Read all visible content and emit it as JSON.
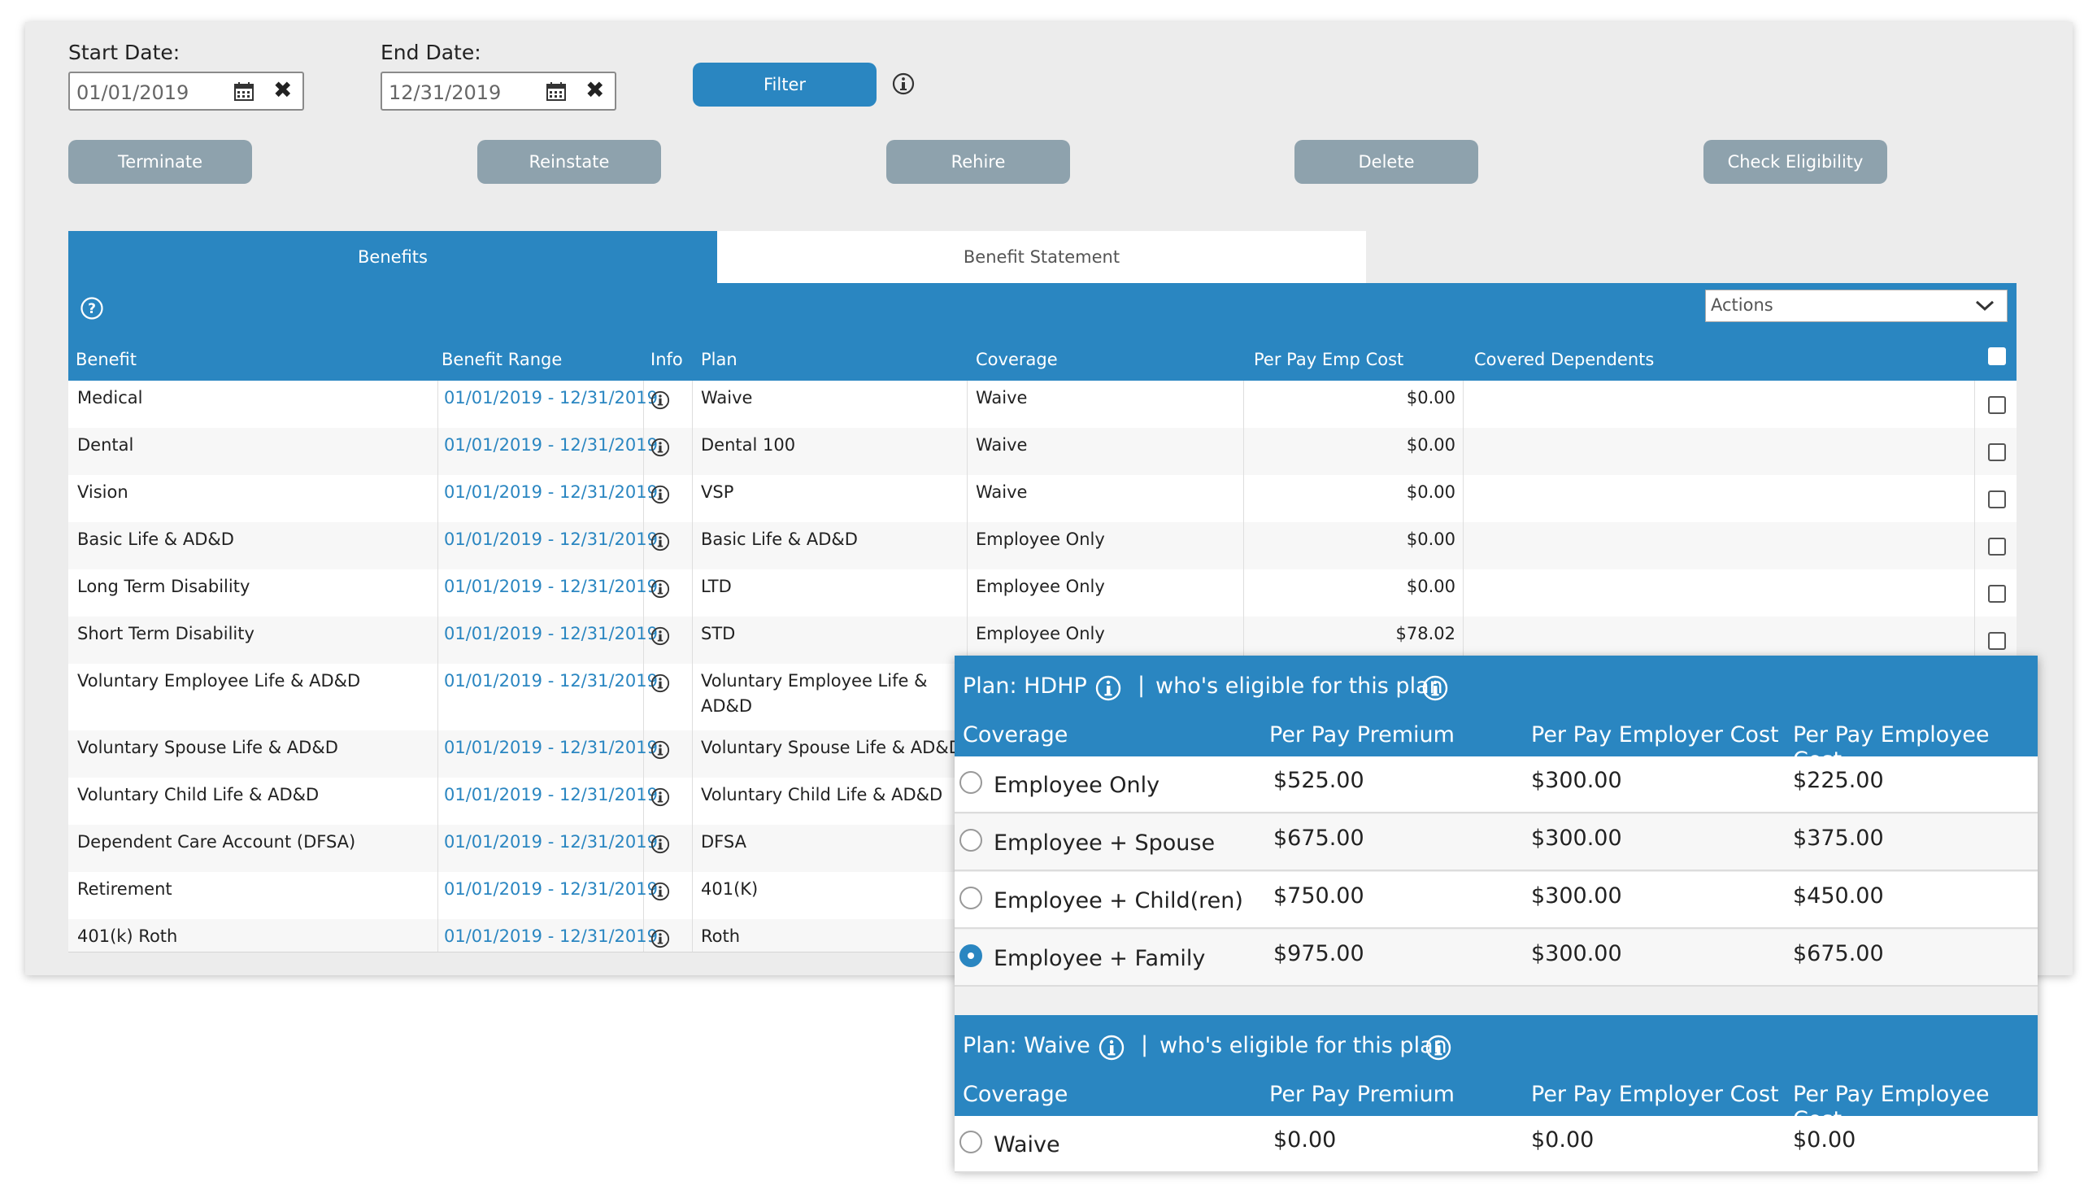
{
  "filters": {
    "start_label": "Start Date:",
    "start_value": "01/01/2019",
    "end_label": "End Date:",
    "end_value": "12/31/2019",
    "filter_button": "Filter"
  },
  "actions": {
    "terminate": "Terminate",
    "reinstate": "Reinstate",
    "rehire": "Rehire",
    "delete": "Delete",
    "check_eligibility": "Check Eligibility"
  },
  "tabs": {
    "benefits": "Benefits",
    "benefit_statement": "Benefit Statement"
  },
  "actions_dropdown": "Actions",
  "table": {
    "headers": {
      "benefit": "Benefit",
      "range": "Benefit Range",
      "info": "Info",
      "plan": "Plan",
      "coverage": "Coverage",
      "cost": "Per Pay Emp Cost",
      "dependents": "Covered Dependents"
    },
    "rows": [
      {
        "benefit": "Medical",
        "range": "01/01/2019 - 12/31/2019",
        "plan": "Waive",
        "plan2": "",
        "coverage": "Waive",
        "cost": "$0.00"
      },
      {
        "benefit": "Dental",
        "range": "01/01/2019 - 12/31/2019",
        "plan": "Dental 100",
        "plan2": "",
        "coverage": "Waive",
        "cost": "$0.00"
      },
      {
        "benefit": "Vision",
        "range": "01/01/2019 - 12/31/2019",
        "plan": "VSP",
        "plan2": "",
        "coverage": "Waive",
        "cost": "$0.00"
      },
      {
        "benefit": "Basic Life & AD&D",
        "range": "01/01/2019 - 12/31/2019",
        "plan": "Basic Life & AD&D",
        "plan2": "",
        "coverage": "Employee Only",
        "cost": "$0.00"
      },
      {
        "benefit": "Long Term Disability",
        "range": "01/01/2019 - 12/31/2019",
        "plan": "LTD",
        "plan2": "",
        "coverage": "Employee Only",
        "cost": "$0.00"
      },
      {
        "benefit": "Short Term Disability",
        "range": "01/01/2019 - 12/31/2019",
        "plan": "STD",
        "plan2": "",
        "coverage": "Employee Only",
        "cost": "$78.02"
      },
      {
        "benefit": "Voluntary Employee Life & AD&D",
        "range": "01/01/2019 - 12/31/2019",
        "plan": "Voluntary Employee Life &",
        "plan2": "AD&D",
        "coverage": "",
        "cost": ""
      },
      {
        "benefit": "Voluntary Spouse Life & AD&D",
        "range": "01/01/2019 - 12/31/2019",
        "plan": "Voluntary Spouse Life & AD&D",
        "plan2": "",
        "coverage": "",
        "cost": ""
      },
      {
        "benefit": "Voluntary Child Life & AD&D",
        "range": "01/01/2019 - 12/31/2019",
        "plan": "Voluntary Child Life & AD&D",
        "plan2": "",
        "coverage": "",
        "cost": ""
      },
      {
        "benefit": "Dependent Care Account (DFSA)",
        "range": "01/01/2019 - 12/31/2019",
        "plan": "DFSA",
        "plan2": "",
        "coverage": "",
        "cost": ""
      },
      {
        "benefit": "Retirement",
        "range": "01/01/2019 - 12/31/2019",
        "plan": "401(K)",
        "plan2": "",
        "coverage": "",
        "cost": ""
      },
      {
        "benefit": "401(k) Roth",
        "range": "01/01/2019 - 12/31/2019",
        "plan": "Roth",
        "plan2": "",
        "coverage": "",
        "cost": ""
      }
    ]
  },
  "popup": {
    "plans": [
      {
        "title": "Plan: HDHP",
        "eligible_link": "who's eligible for this plan",
        "headers": {
          "coverage": "Coverage",
          "premium": "Per Pay Premium",
          "employer": "Per Pay Employer Cost",
          "employee": "Per Pay Employee Cost"
        },
        "options": [
          {
            "coverage": "Employee Only",
            "premium": "$525.00",
            "employer": "$300.00",
            "employee": "$225.00",
            "selected": false
          },
          {
            "coverage": "Employee + Spouse",
            "premium": "$675.00",
            "employer": "$300.00",
            "employee": "$375.00",
            "selected": false
          },
          {
            "coverage": "Employee + Child(ren)",
            "premium": "$750.00",
            "employer": "$300.00",
            "employee": "$450.00",
            "selected": false
          },
          {
            "coverage": "Employee + Family",
            "premium": "$975.00",
            "employer": "$300.00",
            "employee": "$675.00",
            "selected": true
          }
        ]
      },
      {
        "title": "Plan: Waive",
        "eligible_link": "who's eligible for this plan",
        "headers": {
          "coverage": "Coverage",
          "premium": "Per Pay Premium",
          "employer": "Per Pay Employer Cost",
          "employee": "Per Pay Employee Cost"
        },
        "options": [
          {
            "coverage": "Waive",
            "premium": "$0.00",
            "employer": "$0.00",
            "employee": "$0.00",
            "selected": false
          }
        ]
      }
    ]
  },
  "colors": {
    "accent": "#2a86c1",
    "button_gray": "#8ea2ad",
    "panel": "#ececec"
  }
}
